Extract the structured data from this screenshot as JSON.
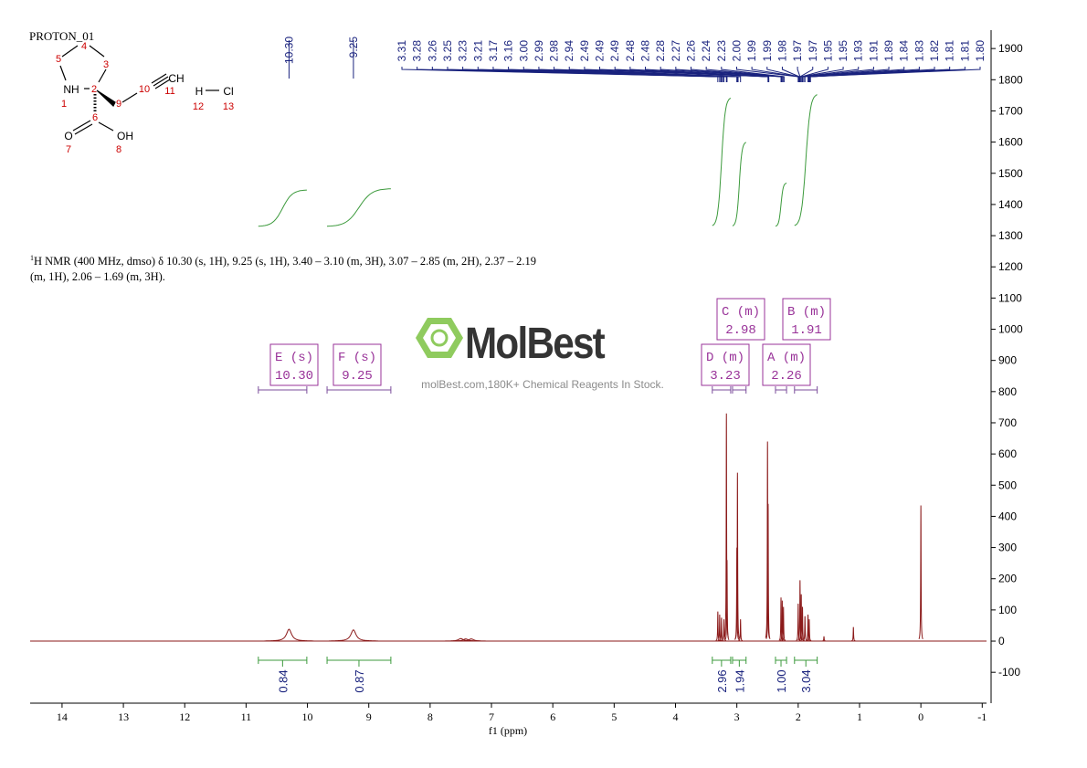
{
  "title": "PROTON_01",
  "structure": {
    "atoms": [
      "4",
      "5",
      "3",
      "NH",
      "2",
      "1",
      "10",
      "CH",
      "11",
      "9",
      "6",
      "O",
      "OH",
      "7",
      "8",
      "H",
      "Cl",
      "12",
      "13"
    ]
  },
  "nmr_text": {
    "sup": "1",
    "text": "H NMR (400 MHz, dmso) δ 10.30 (s, 1H), 9.25 (s, 1H), 3.40 – 3.10 (m, 3H), 3.07 – 2.85 (m, 2H), 2.37 – 2.19 (m, 1H), 2.06 – 1.69 (m, 3H)."
  },
  "watermark": {
    "brand": "MolBest",
    "tagline": "molBest.com,180K+ Chemical Reagents In Stock."
  },
  "chart_data": {
    "type": "nmr",
    "x_label": "f1 (ppm)",
    "color": "#8b1a1a",
    "xlim": [
      14.52,
      -1.07
    ],
    "xticks": [
      14,
      13,
      12,
      11,
      10,
      9,
      8,
      7,
      6,
      5,
      4,
      3,
      2,
      1,
      0,
      -1
    ],
    "ylim": [
      -199,
      1959
    ],
    "yticks": [
      -100,
      0,
      100,
      200,
      300,
      400,
      500,
      600,
      700,
      800,
      900,
      1000,
      1100,
      1200,
      1300,
      1400,
      1500,
      1600,
      1700,
      1800,
      1900
    ],
    "x": [
      10.3,
      9.25,
      7.5,
      7.42,
      7.33,
      3.31,
      3.28,
      3.25,
      3.21,
      3.17,
      3.16,
      3.0,
      2.99,
      2.94,
      2.5,
      2.49,
      2.28,
      2.26,
      2.24,
      2.0,
      1.97,
      1.95,
      1.93,
      1.89,
      1.84,
      1.82,
      1.58,
      1.1,
      0.0
    ],
    "values": [
      38,
      36,
      8,
      7,
      7,
      95,
      85,
      75,
      70,
      730,
      260,
      300,
      540,
      70,
      640,
      440,
      140,
      130,
      110,
      120,
      195,
      150,
      110,
      80,
      85,
      70,
      15,
      45,
      435
    ],
    "peak_labels_wide": [
      "10.30",
      "9.25"
    ],
    "peak_labels": [
      "3.31",
      "3.28",
      "3.26",
      "3.25",
      "3.23",
      "3.21",
      "3.17",
      "3.16",
      "3.00",
      "2.99",
      "2.98",
      "2.94",
      "2.49",
      "2.49",
      "2.49",
      "2.48",
      "2.48",
      "2.28",
      "2.27",
      "2.26",
      "2.24",
      "2.23",
      "2.00",
      "1.99",
      "1.99",
      "1.98",
      "1.97",
      "1.97",
      "1.95",
      "1.95",
      "1.93",
      "1.91",
      "1.89",
      "1.84",
      "1.83",
      "1.82",
      "1.81",
      "1.81",
      "1.80"
    ],
    "multiplets": [
      {
        "name": "E (s)",
        "shift": "10.30",
        "range": [
          10.8,
          10.01
        ],
        "integral": 0.84
      },
      {
        "name": "F (s)",
        "shift": "9.25",
        "range": [
          9.68,
          8.64
        ],
        "integral": 0.87
      },
      {
        "name": "D (m)",
        "shift": "3.23",
        "range": [
          3.4,
          3.1
        ],
        "integral": 2.96
      },
      {
        "name": "C (m)",
        "shift": "2.98",
        "range": [
          3.07,
          2.85
        ],
        "integral": 1.94
      },
      {
        "name": "A (m)",
        "shift": "2.26",
        "range": [
          2.37,
          2.19
        ],
        "integral": 1,
        "integral_label": "1.00"
      },
      {
        "name": "B (m)",
        "shift": "1.91",
        "range": [
          2.06,
          1.69
        ],
        "integral": 3.04
      }
    ]
  }
}
